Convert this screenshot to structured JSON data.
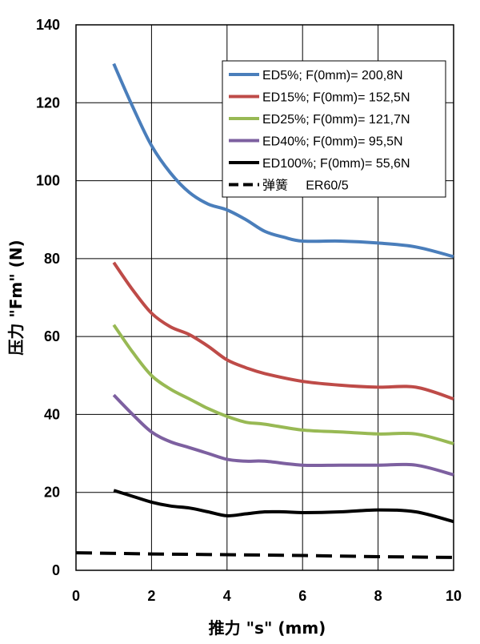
{
  "chart_data": {
    "type": "line",
    "xlabel": "推力 \"s\" (mm)",
    "ylabel": "压力 \"Fm\" (N)",
    "xlim": [
      0,
      10
    ],
    "ylim": [
      0,
      140
    ],
    "xticks": [
      0,
      2,
      4,
      6,
      8,
      10
    ],
    "yticks": [
      0,
      20,
      40,
      60,
      80,
      100,
      120,
      140
    ],
    "grid": true,
    "legend_position": "top-right",
    "series": [
      {
        "name": "ED5%; F(0mm)= 200,8N",
        "color": "#4a7ebb",
        "dashed": false,
        "x": [
          1,
          1.5,
          2,
          2.5,
          3,
          3.5,
          4,
          4.5,
          5,
          5.5,
          6,
          7,
          8,
          9,
          10
        ],
        "y": [
          130,
          119,
          109,
          102,
          97,
          94,
          92.5,
          90,
          87,
          85.5,
          84.5,
          84.5,
          84,
          83,
          80.5
        ]
      },
      {
        "name": "ED15%; F(0mm)= 152,5N",
        "color": "#be4b48",
        "dashed": false,
        "x": [
          1,
          1.5,
          2,
          2.5,
          3,
          3.5,
          4,
          4.5,
          5,
          6,
          7,
          8,
          9,
          10
        ],
        "y": [
          79,
          72,
          66,
          62.5,
          60.5,
          57.5,
          54,
          52,
          50.5,
          48.5,
          47.5,
          47,
          47,
          44
        ]
      },
      {
        "name": "ED25%; F(0mm)= 121,7N",
        "color": "#98b954",
        "dashed": false,
        "x": [
          1,
          1.5,
          2,
          2.5,
          3,
          3.5,
          4,
          4.5,
          5,
          6,
          7,
          8,
          9,
          10
        ],
        "y": [
          63,
          56,
          50,
          46.5,
          44,
          41.5,
          39.5,
          38,
          37.5,
          36,
          35.5,
          35,
          35,
          32.5
        ]
      },
      {
        "name": "ED40%; F(0mm)= 95,5N",
        "color": "#7d60a0",
        "dashed": false,
        "x": [
          1,
          1.5,
          2,
          2.5,
          3,
          3.5,
          4,
          4.5,
          5,
          6,
          7,
          8,
          9,
          10
        ],
        "y": [
          45,
          40,
          35.5,
          33,
          31.5,
          30,
          28.5,
          28,
          28,
          27,
          27,
          27,
          27,
          24.5
        ]
      },
      {
        "name": "ED100%; F(0mm)= 55,6N",
        "color": "#000000",
        "dashed": false,
        "x": [
          1,
          1.5,
          2,
          2.5,
          3,
          3.5,
          4,
          4.5,
          5,
          5.5,
          6,
          7,
          8,
          9,
          10
        ],
        "y": [
          20.5,
          19,
          17.5,
          16.5,
          16,
          15,
          14,
          14.5,
          15,
          15,
          14.8,
          15,
          15.5,
          15,
          12.5
        ]
      },
      {
        "name": "弹簧     ER60/5",
        "color": "#000000",
        "dashed": true,
        "x": [
          0,
          2,
          4,
          6,
          8,
          10
        ],
        "y": [
          4.5,
          4.2,
          4.0,
          3.8,
          3.5,
          3.3
        ]
      }
    ]
  }
}
